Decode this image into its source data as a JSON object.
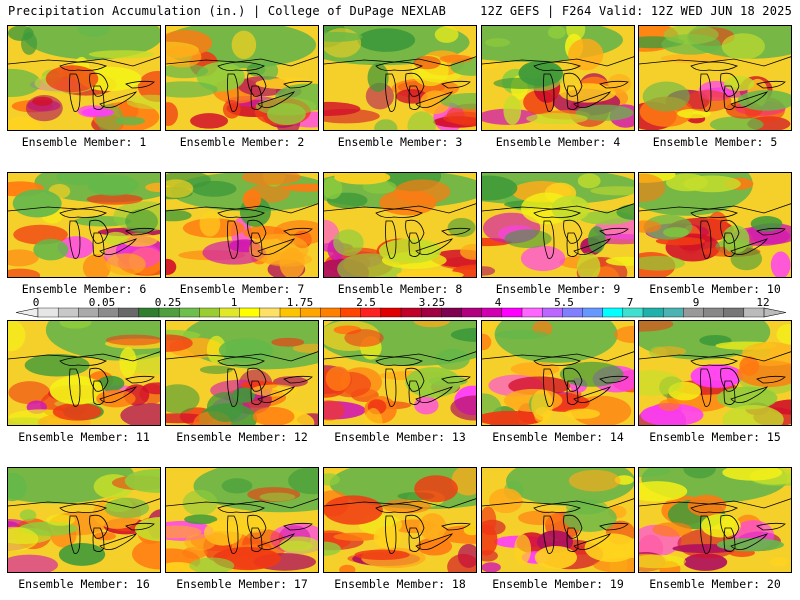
{
  "header": {
    "left": "Precipitation Accumulation (in.) | College of DuPage NEXLAB",
    "right": "12Z GEFS | F264 Valid: 12Z WED JUN 18 2025"
  },
  "panels": [
    {
      "label": "Ensemble Member: 1"
    },
    {
      "label": "Ensemble Member: 2"
    },
    {
      "label": "Ensemble Member: 3"
    },
    {
      "label": "Ensemble Member: 4"
    },
    {
      "label": "Ensemble Member: 5"
    },
    {
      "label": "Ensemble Member: 6"
    },
    {
      "label": "Ensemble Member: 7"
    },
    {
      "label": "Ensemble Member: 8"
    },
    {
      "label": "Ensemble Member: 9"
    },
    {
      "label": "Ensemble Member: 10"
    },
    {
      "label": "Ensemble Member: 11"
    },
    {
      "label": "Ensemble Member: 12"
    },
    {
      "label": "Ensemble Member: 13"
    },
    {
      "label": "Ensemble Member: 14"
    },
    {
      "label": "Ensemble Member: 15"
    },
    {
      "label": "Ensemble Member: 16"
    },
    {
      "label": "Ensemble Member: 17"
    },
    {
      "label": "Ensemble Member: 18"
    },
    {
      "label": "Ensemble Member: 19"
    },
    {
      "label": "Ensemble Member: 20"
    }
  ],
  "colorbar": {
    "tick_labels": [
      "0",
      "0.05",
      "0.25",
      "1",
      "1.75",
      "2.5",
      "3.25",
      "4",
      "5.5",
      "7",
      "9",
      "12"
    ],
    "colors": [
      "#e6e6e6",
      "#c8c8c8",
      "#aaaaaa",
      "#8c8c8c",
      "#696969",
      "#2f7f2f",
      "#4f9f3f",
      "#6fbf4f",
      "#9acd32",
      "#e1e82a",
      "#ffff00",
      "#ffe066",
      "#ffc400",
      "#ffa500",
      "#ff7f00",
      "#ff4500",
      "#ff2020",
      "#e00000",
      "#c00028",
      "#a00040",
      "#800050",
      "#b00080",
      "#d000b0",
      "#ff00ff",
      "#ff66ff",
      "#bb66ff",
      "#8080ff",
      "#6699ff",
      "#00ffff",
      "#40e0d0",
      "#20b2aa",
      "#4cb3b3",
      "#999999",
      "#888888",
      "#777777",
      "#bbbbbb"
    ]
  }
}
